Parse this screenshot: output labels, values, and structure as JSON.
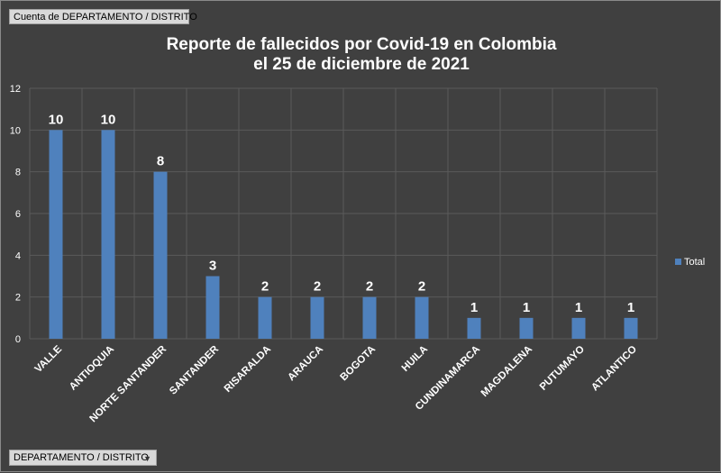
{
  "value_field_label": "Cuenta de DEPARTAMENTO / DISTRITO",
  "axis_field_label": "DEPARTAMENTO / DISTRITO",
  "colors": {
    "bar": "#4f81bd",
    "background": "#404040",
    "grid": "#5a5a5a",
    "text": "#ffffff"
  },
  "chart_data": {
    "type": "bar",
    "title_lines": [
      "Reporte de fallecidos por Covid-19 en Colombia",
      "el 25 de diciembre de 2021"
    ],
    "categories": [
      "VALLE",
      "ANTIOQUIA",
      "NORTE SANTANDER",
      "SANTANDER",
      "RISARALDA",
      "ARAUCA",
      "BOGOTA",
      "HUILA",
      "CUNDINAMARCA",
      "MAGDALENA",
      "PUTUMAYO",
      "ATLANTICO"
    ],
    "series": [
      {
        "name": "Total",
        "values": [
          10,
          10,
          8,
          3,
          2,
          2,
          2,
          2,
          1,
          1,
          1,
          1
        ]
      }
    ],
    "ylim": [
      0,
      12
    ],
    "yticks": [
      0,
      2,
      4,
      6,
      8,
      10,
      12
    ],
    "grid": true,
    "legend_position": "right",
    "data_labels": true
  }
}
